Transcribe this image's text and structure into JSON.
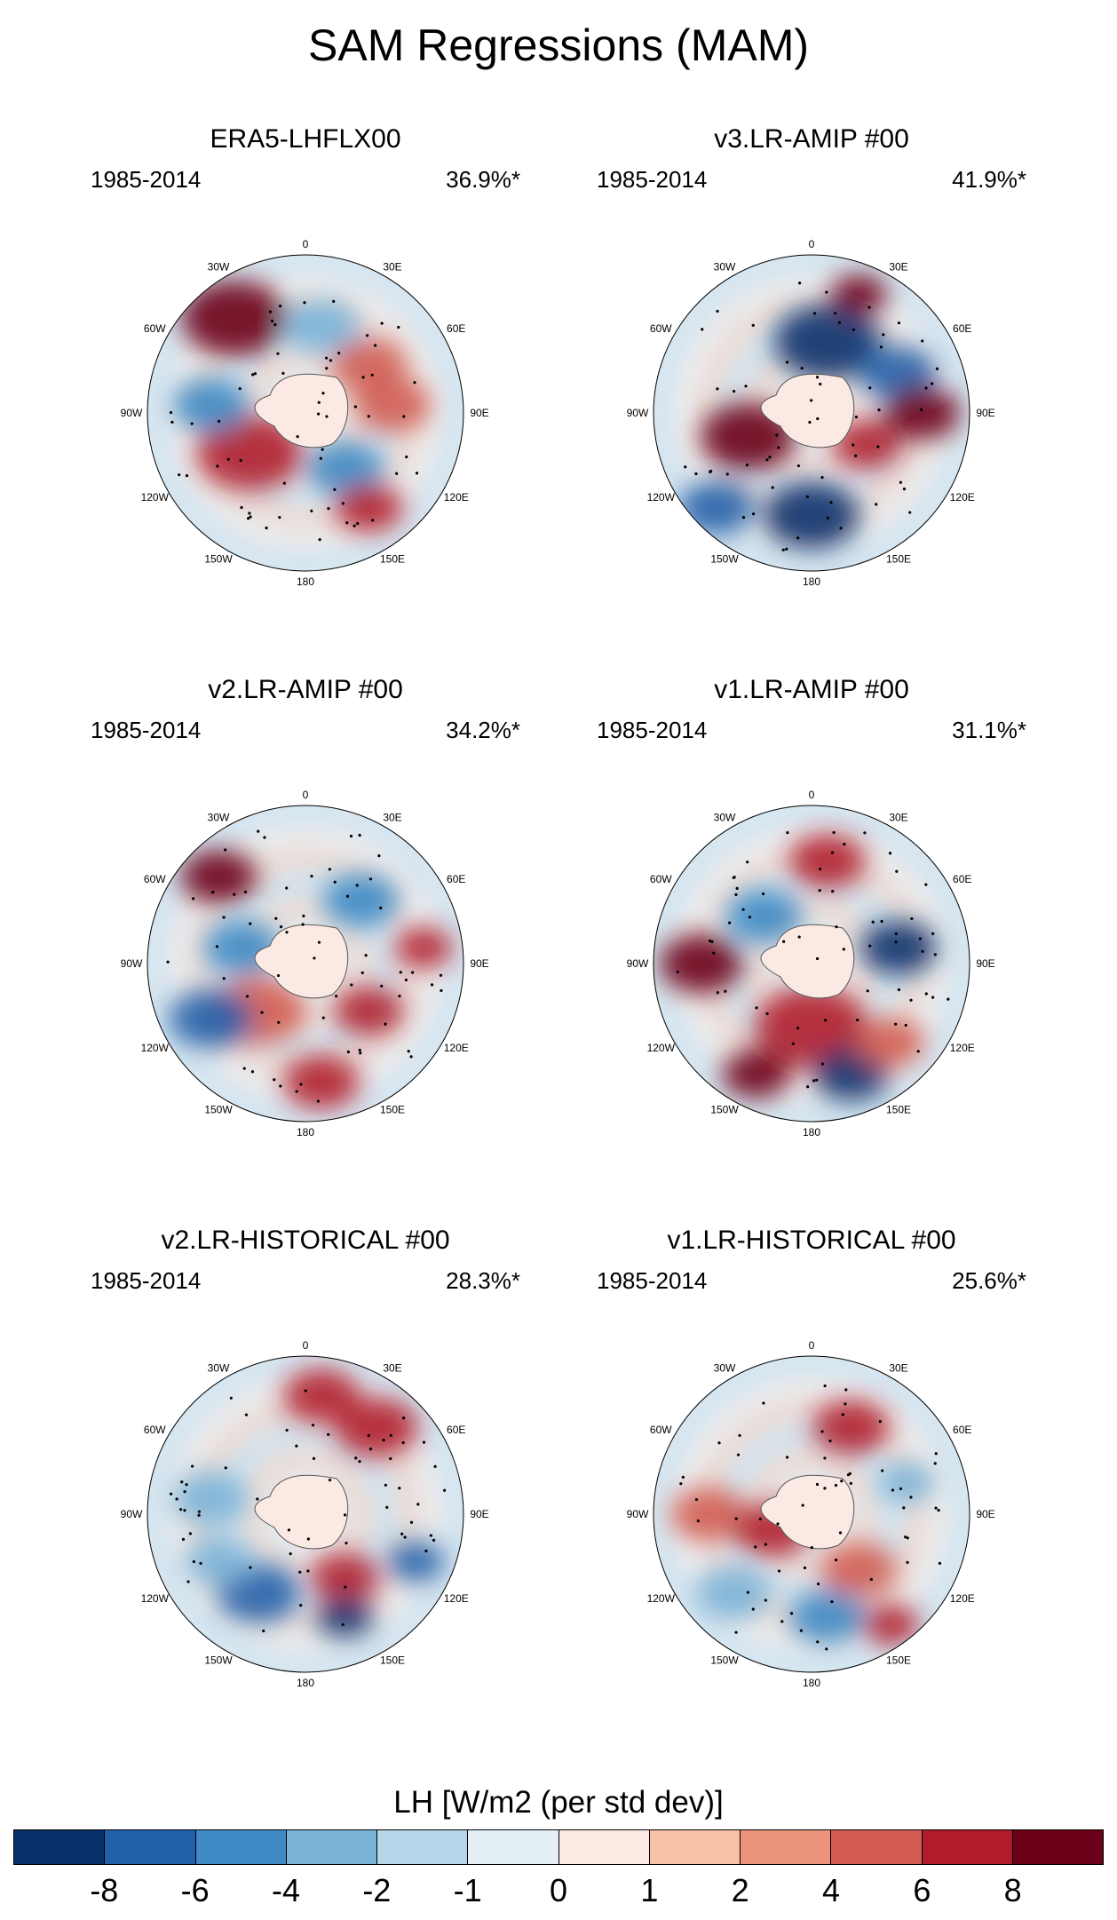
{
  "title": "SAM Regressions (MAM)",
  "panels": [
    {
      "title": "ERA5-LHFLX00",
      "years": "1985-2014",
      "percent": "36.9%*"
    },
    {
      "title": "v3.LR-AMIP  #00",
      "years": "1985-2014",
      "percent": "41.9%*"
    },
    {
      "title": "v2.LR-AMIP  #00",
      "years": "1985-2014",
      "percent": "34.2%*"
    },
    {
      "title": "v1.LR-AMIP  #00",
      "years": "1985-2014",
      "percent": "31.1%*"
    },
    {
      "title": "v2.LR-HISTORICAL  #00",
      "years": "1985-2014",
      "percent": "28.3%*"
    },
    {
      "title": "v1.LR-HISTORICAL  #00",
      "years": "1985-2014",
      "percent": "25.6%*"
    }
  ],
  "longitude_labels": {
    "lon0": "0",
    "lon30e": "30E",
    "lon60e": "60E",
    "lon90e": "90E",
    "lon120e": "120E",
    "lon150e": "150E",
    "lon180": "180",
    "lon150w": "150W",
    "lon120w": "120W",
    "lon90w": "90W",
    "lon60w": "60W",
    "lon30w": "30W"
  },
  "colorbar": {
    "title": "LH [W/m2 (per std dev)]",
    "colors": [
      "#08306b",
      "#2161a9",
      "#3f8ac4",
      "#7ab3d8",
      "#b6d5e8",
      "#e4eef5",
      "#faeae3",
      "#f6c1a7",
      "#eb937a",
      "#d35c52",
      "#b01c2c",
      "#6c0019"
    ],
    "tick_labels": [
      "-8",
      "-6",
      "-4",
      "-2",
      "-1",
      "0",
      "1",
      "2",
      "4",
      "6",
      "8"
    ]
  }
}
